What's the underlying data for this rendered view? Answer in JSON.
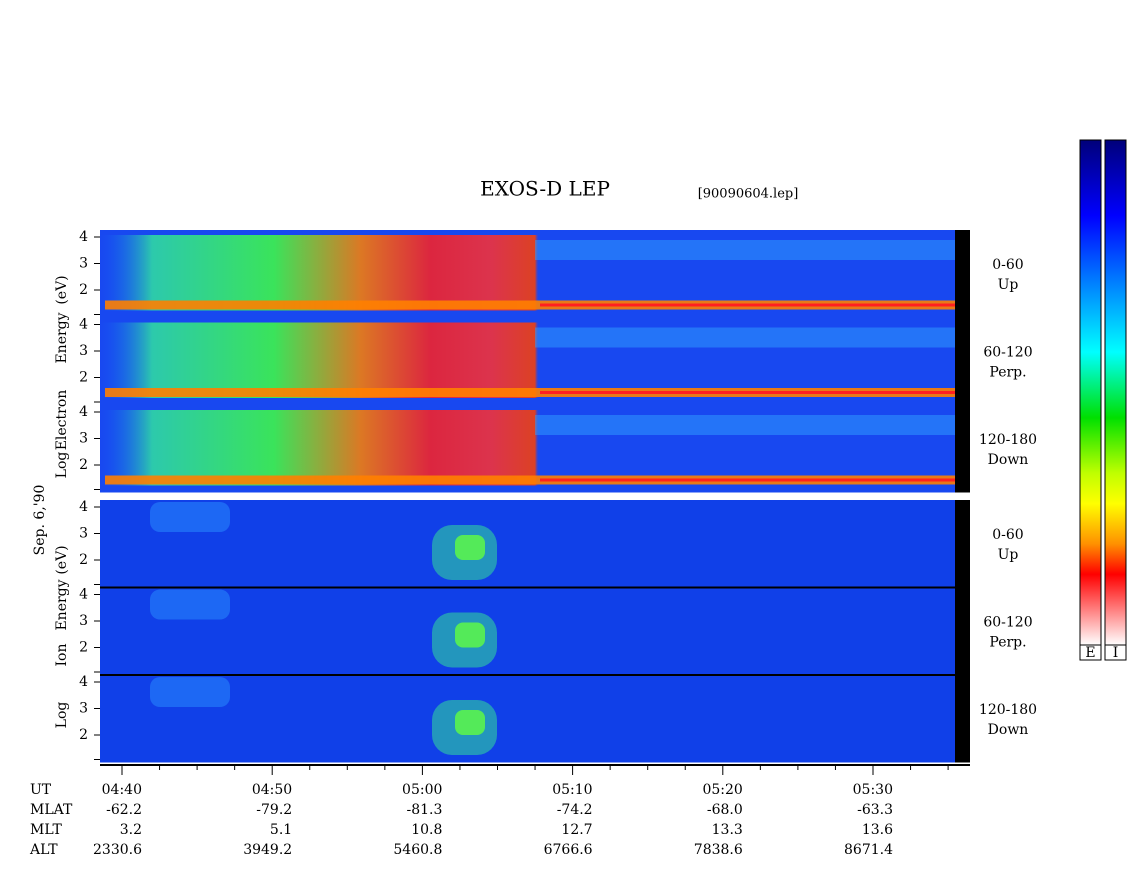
{
  "title": "EXOS-D LEP",
  "file": "[90090604.lep]",
  "date": "Sep. 6,'90",
  "yticks": [
    "4",
    "3",
    "2"
  ],
  "electron": {
    "axis_label": [
      "Log",
      "Electron",
      "Energy",
      "(eV)"
    ],
    "panels": [
      {
        "angle": "0-60",
        "direction": "Up"
      },
      {
        "angle": "60-120",
        "direction": "Perp."
      },
      {
        "angle": "120-180",
        "direction": "Down"
      }
    ]
  },
  "ion": {
    "axis_label": [
      "Log",
      "Ion",
      "Energy",
      "(eV)"
    ],
    "panels": [
      {
        "angle": "0-60",
        "direction": "Up"
      },
      {
        "angle": "60-120",
        "direction": "Perp."
      },
      {
        "angle": "120-180",
        "direction": "Down"
      }
    ]
  },
  "time_axis": [
    {
      "name": "UT",
      "values": [
        "04:40",
        "04:50",
        "05:00",
        "05:10",
        "05:20",
        "05:30"
      ]
    },
    {
      "name": "MLAT",
      "values": [
        "-62.2",
        "-79.2",
        "-81.3",
        "-74.2",
        "-68.0",
        "-63.3"
      ]
    },
    {
      "name": "MLT",
      "values": [
        "3.2",
        "5.1",
        "10.8",
        "12.7",
        "13.3",
        "13.6"
      ]
    },
    {
      "name": "ALT",
      "values": [
        "2330.6",
        "3949.2",
        "5460.8",
        "6766.6",
        "7838.6",
        "8671.4"
      ]
    }
  ],
  "colorbars": [
    "E",
    "I"
  ]
}
